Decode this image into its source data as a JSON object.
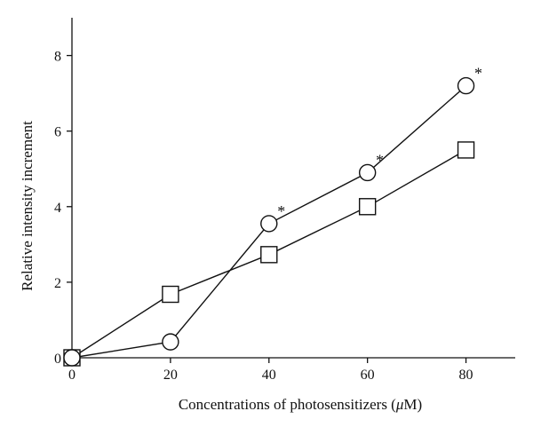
{
  "chart_data": {
    "type": "line",
    "title": "",
    "xlabel_main": "Concentrations of photosensitizers (",
    "xlabel_unit_mu": "μ",
    "xlabel_unit_rest": "M)",
    "ylabel": "Relative intensity increment",
    "xlim": [
      0,
      90
    ],
    "ylim": [
      0,
      9
    ],
    "xticks": [
      "0",
      "20",
      "40",
      "60",
      "80"
    ],
    "yticks": [
      "0",
      "2",
      "4",
      "6",
      "8"
    ],
    "grid": false,
    "legend": "none",
    "series": [
      {
        "marker": "circle",
        "x": [
          0,
          20,
          40,
          60,
          80
        ],
        "y": [
          0,
          0.42,
          3.55,
          4.9,
          7.2
        ],
        "significance": [
          "",
          "",
          "*",
          "*",
          "*"
        ]
      },
      {
        "marker": "square",
        "x": [
          0,
          20,
          40,
          60,
          80
        ],
        "y": [
          0,
          1.68,
          2.73,
          4.0,
          5.5
        ],
        "significance": [
          "",
          "",
          "",
          "",
          ""
        ]
      }
    ]
  }
}
